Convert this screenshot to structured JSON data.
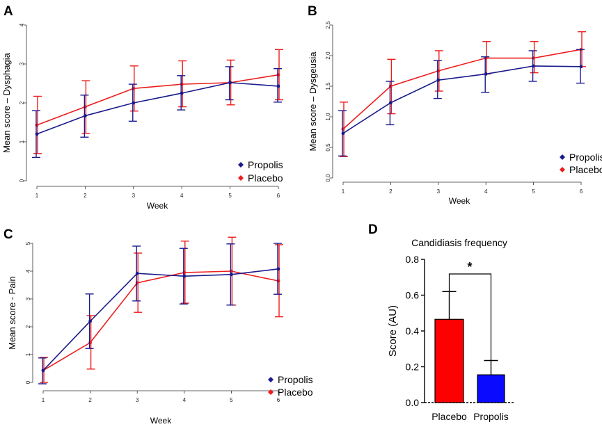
{
  "colors": {
    "propolis": "#1a1a8c",
    "placebo": "#ee1c1c",
    "axis": "#333333",
    "bar_placebo": "#ff0000",
    "bar_propolis": "#0a0aff"
  },
  "panel_labels": {
    "a": "A",
    "b": "B",
    "c": "C",
    "d": "D"
  },
  "chart_data": [
    {
      "id": "A",
      "type": "line",
      "xlabel": "Week",
      "ylabel": "Mean score – Dysphagia",
      "x": [
        1,
        2,
        3,
        4,
        5,
        6
      ],
      "xticks": [
        "1",
        "2",
        "3",
        "4",
        "5",
        "6"
      ],
      "ylim": [
        0,
        4
      ],
      "yticks": [
        "0",
        "1",
        "2",
        "3",
        "4"
      ],
      "legend": [
        "Propolis",
        "Placebo"
      ],
      "series": [
        {
          "name": "Propolis",
          "values": [
            1.2,
            1.67,
            2.0,
            2.25,
            2.52,
            2.43
          ],
          "err_low": [
            0.6,
            1.12,
            1.53,
            1.82,
            2.08,
            2.02
          ],
          "err_high": [
            1.8,
            2.2,
            2.48,
            2.7,
            2.93,
            2.88
          ]
        },
        {
          "name": "Placebo",
          "values": [
            1.43,
            1.9,
            2.37,
            2.48,
            2.52,
            2.72
          ],
          "err_low": [
            0.7,
            1.22,
            1.79,
            1.9,
            1.95,
            2.08
          ],
          "err_high": [
            2.17,
            2.57,
            2.95,
            3.08,
            3.1,
            3.37
          ]
        }
      ]
    },
    {
      "id": "B",
      "type": "line",
      "xlabel": "Week",
      "ylabel": "Mean score – Dysgeusia",
      "x": [
        1,
        2,
        3,
        4,
        5,
        6
      ],
      "xticks": [
        "1",
        "2",
        "3",
        "4",
        "5",
        "6"
      ],
      "ylim": [
        0,
        2.5
      ],
      "yticks": [
        "0.0",
        "0.5",
        "1.0",
        "1.5",
        "2.0",
        "2.5"
      ],
      "legend": [
        "Propolis",
        "Placebo"
      ],
      "series": [
        {
          "name": "Propolis",
          "values": [
            0.73,
            1.23,
            1.6,
            1.7,
            1.83,
            1.82
          ],
          "err_low": [
            0.36,
            0.87,
            1.3,
            1.4,
            1.58,
            1.55
          ],
          "err_high": [
            1.1,
            1.58,
            1.92,
            1.98,
            2.08,
            2.1
          ]
        },
        {
          "name": "Placebo",
          "values": [
            0.8,
            1.5,
            1.75,
            1.96,
            1.96,
            2.1
          ],
          "err_low": [
            0.35,
            1.05,
            1.42,
            1.7,
            1.72,
            1.82
          ],
          "err_high": [
            1.24,
            1.94,
            2.08,
            2.23,
            2.23,
            2.39
          ]
        }
      ]
    },
    {
      "id": "C",
      "type": "line",
      "xlabel": "Week",
      "ylabel": "Mean score - Pain",
      "x": [
        1,
        2,
        3,
        4,
        5,
        6
      ],
      "xticks": [
        "1",
        "2",
        "3",
        "4",
        "5",
        "6"
      ],
      "ylim": [
        0,
        5
      ],
      "yticks": [
        "0",
        "1",
        "2",
        "3",
        "4",
        "5"
      ],
      "legend": [
        "Propolis",
        "Placebo"
      ],
      "series": [
        {
          "name": "Propolis",
          "values": [
            0.43,
            2.2,
            3.92,
            3.82,
            3.88,
            4.08
          ],
          "err_low": [
            -0.05,
            1.22,
            2.93,
            2.82,
            2.78,
            3.17
          ],
          "err_high": [
            0.88,
            3.18,
            4.9,
            4.82,
            4.98,
            5.0
          ]
        },
        {
          "name": "Placebo",
          "values": [
            0.43,
            1.43,
            3.58,
            3.95,
            4.0,
            3.65
          ],
          "err_low": [
            0.0,
            0.48,
            2.52,
            2.85,
            2.78,
            2.36
          ],
          "err_high": [
            0.9,
            2.4,
            4.65,
            5.08,
            5.22,
            4.95
          ]
        }
      ]
    },
    {
      "id": "D",
      "type": "bar",
      "title": "Candidiasis frequency",
      "xlabel": "",
      "ylabel": "Score  (AU)",
      "categories": [
        "Placebo",
        "Propolis"
      ],
      "values": [
        0.465,
        0.155
      ],
      "err_high": [
        0.62,
        0.235
      ],
      "ylim": [
        0,
        0.8
      ],
      "yticks": [
        "0.0",
        "0.2",
        "0.4",
        "0.6",
        "0.8"
      ],
      "significance": "*"
    }
  ]
}
